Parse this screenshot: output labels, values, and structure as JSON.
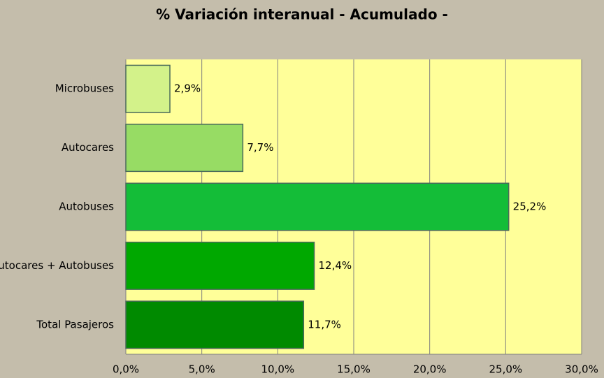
{
  "chart_data": {
    "type": "bar",
    "orientation": "horizontal",
    "title": "% Variación interanual - Acumulado -",
    "categories": [
      "Microbuses",
      "Autocares",
      "Autobuses",
      "Autocares + Autobuses",
      "Total Pasajeros"
    ],
    "values": [
      2.9,
      7.7,
      25.2,
      12.4,
      11.7
    ],
    "value_labels": [
      "2,9%",
      "7,7%",
      "25,2%",
      "12,4%",
      "11,7%"
    ],
    "colors": [
      "#d3f28a",
      "#97dc64",
      "#14bd38",
      "#00a800",
      "#008a00"
    ],
    "xlim": [
      0,
      30
    ],
    "xticks": [
      {
        "value": 0,
        "label": "0,0%"
      },
      {
        "value": 5,
        "label": "5,0%"
      },
      {
        "value": 10,
        "label": "10,0%"
      },
      {
        "value": 15,
        "label": "15,0%"
      },
      {
        "value": 20,
        "label": "20,0%"
      },
      {
        "value": 25,
        "label": "25,0%"
      },
      {
        "value": 30,
        "label": "30,0%"
      }
    ],
    "grid": true
  }
}
